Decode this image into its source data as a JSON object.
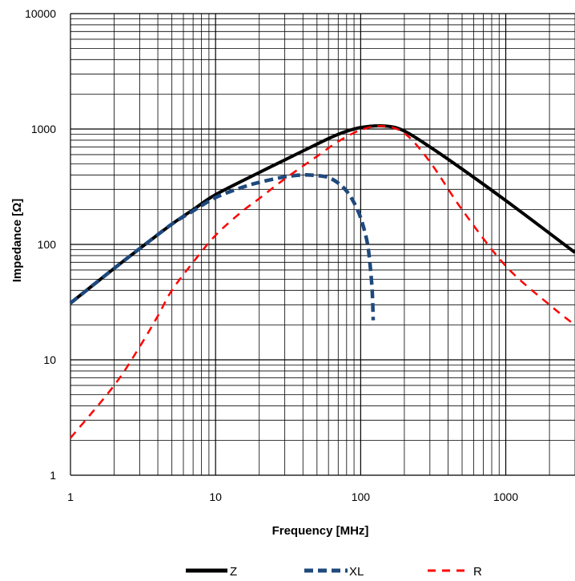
{
  "chart_data": {
    "type": "line",
    "xlabel": "Frequency [MHz]",
    "ylabel": "Impedance [Ω]",
    "x_scale": "log",
    "y_scale": "log",
    "xlim": [
      1,
      3000
    ],
    "ylim": [
      1,
      10000
    ],
    "x_ticks": [
      "1",
      "10",
      "100",
      "1000"
    ],
    "y_ticks": [
      "1",
      "10",
      "100",
      "1000",
      "10000"
    ],
    "grid": true,
    "legend_position": "bottom",
    "series": [
      {
        "name": "Z",
        "color": "#000000",
        "style": "solid",
        "points": [
          [
            1,
            31
          ],
          [
            2,
            62
          ],
          [
            3,
            92
          ],
          [
            5,
            150
          ],
          [
            7,
            200
          ],
          [
            10,
            270
          ],
          [
            20,
            420
          ],
          [
            30,
            540
          ],
          [
            50,
            740
          ],
          [
            70,
            900
          ],
          [
            100,
            1030
          ],
          [
            150,
            1060
          ],
          [
            200,
            960
          ],
          [
            300,
            700
          ],
          [
            500,
            450
          ],
          [
            1000,
            240
          ],
          [
            2000,
            125
          ],
          [
            3000,
            85
          ]
        ]
      },
      {
        "name": "XL",
        "color": "#1f497d",
        "style": "dash",
        "points": [
          [
            1,
            31
          ],
          [
            2,
            62
          ],
          [
            3,
            92
          ],
          [
            5,
            150
          ],
          [
            7,
            195
          ],
          [
            10,
            255
          ],
          [
            15,
            310
          ],
          [
            20,
            345
          ],
          [
            30,
            385
          ],
          [
            40,
            400
          ],
          [
            50,
            395
          ],
          [
            60,
            380
          ],
          [
            70,
            340
          ],
          [
            80,
            290
          ],
          [
            90,
            230
          ],
          [
            100,
            170
          ],
          [
            110,
            110
          ],
          [
            115,
            75
          ],
          [
            120,
            40
          ],
          [
            122,
            22
          ]
        ]
      },
      {
        "name": "R",
        "color": "#ff0000",
        "style": "dash",
        "points": [
          [
            1,
            2.1
          ],
          [
            2,
            6
          ],
          [
            3,
            13
          ],
          [
            4,
            24
          ],
          [
            5,
            40
          ],
          [
            7,
            70
          ],
          [
            10,
            120
          ],
          [
            15,
            190
          ],
          [
            20,
            250
          ],
          [
            30,
            370
          ],
          [
            50,
            580
          ],
          [
            70,
            780
          ],
          [
            100,
            980
          ],
          [
            140,
            1060
          ],
          [
            200,
            920
          ],
          [
            300,
            520
          ],
          [
            500,
            200
          ],
          [
            1000,
            65
          ],
          [
            2000,
            30
          ],
          [
            3000,
            20
          ]
        ]
      }
    ]
  }
}
